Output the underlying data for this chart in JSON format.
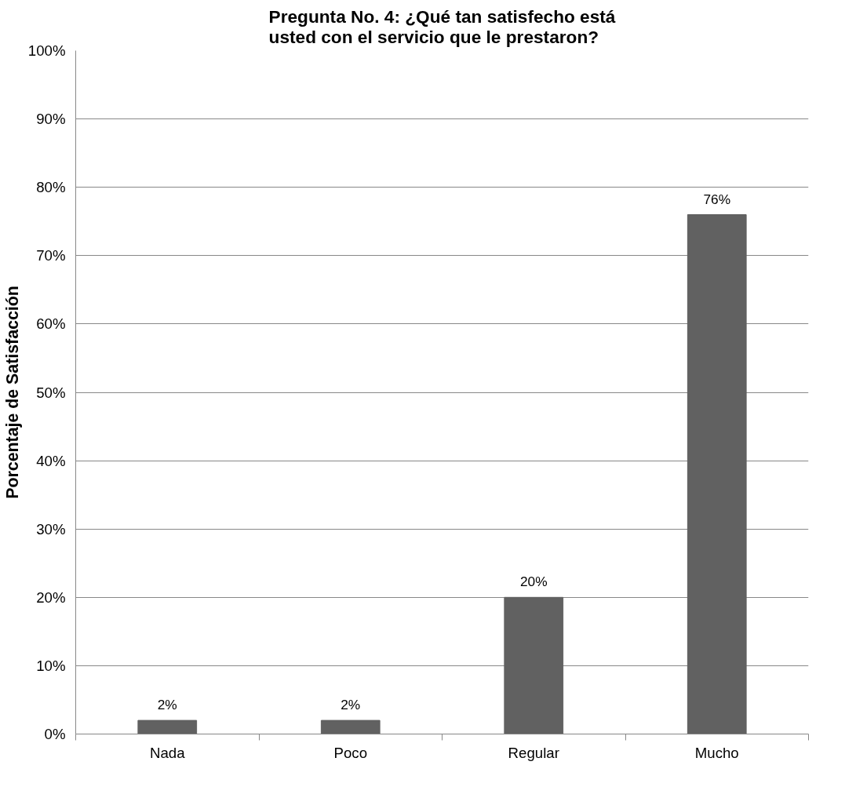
{
  "chart_data": {
    "type": "bar",
    "title": "Pregunta No. 4: ¿Qué tan satisfecho está\nusted con el servicio que le prestaron?",
    "ylabel": "Porcentaje de Satisfacción",
    "categories": [
      "Nada",
      "Poco",
      "Regular",
      "Mucho"
    ],
    "values": [
      2,
      2,
      20,
      76
    ],
    "value_labels": [
      "2%",
      "2%",
      "20%",
      "76%"
    ],
    "color": "#616161",
    "grid": "y",
    "ylim": [
      0,
      100
    ],
    "yticks": [
      {
        "value": 0,
        "label": "0%"
      },
      {
        "value": 10,
        "label": "10%"
      },
      {
        "value": 20,
        "label": "20%"
      },
      {
        "value": 30,
        "label": "30%"
      },
      {
        "value": 40,
        "label": "40%"
      },
      {
        "value": 50,
        "label": "50%"
      },
      {
        "value": 60,
        "label": "60%"
      },
      {
        "value": 70,
        "label": "70%"
      },
      {
        "value": 80,
        "label": "80%"
      },
      {
        "value": 90,
        "label": "90%"
      },
      {
        "value": 100,
        "label": "100%"
      }
    ]
  }
}
